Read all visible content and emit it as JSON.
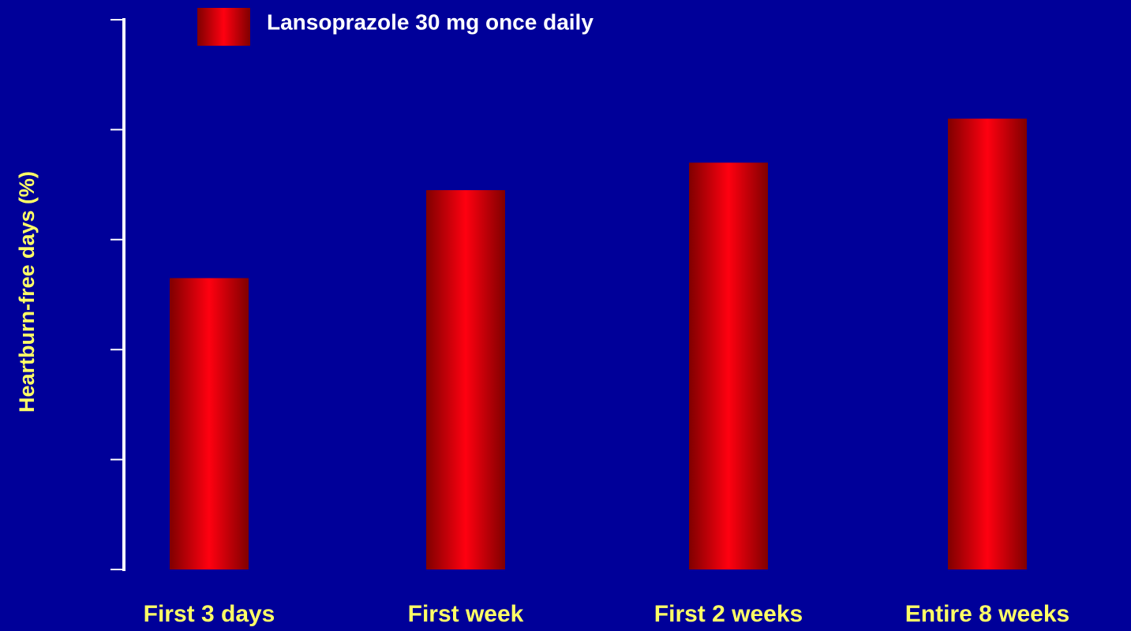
{
  "chart_data": {
    "type": "bar",
    "y_label": "Heartburn-free days (%)",
    "categories": [
      "First 3 days",
      "First week",
      "First 2 weeks",
      "Entire 8 weeks"
    ],
    "series": [
      {
        "name": "Lansoprazole 30 mg once daily",
        "color": "#ff0010",
        "values": [
          53,
          69,
          74,
          82
        ]
      }
    ],
    "ylim": [
      0,
      100
    ],
    "yticks": [
      0,
      20,
      40,
      60,
      80,
      100
    ]
  }
}
